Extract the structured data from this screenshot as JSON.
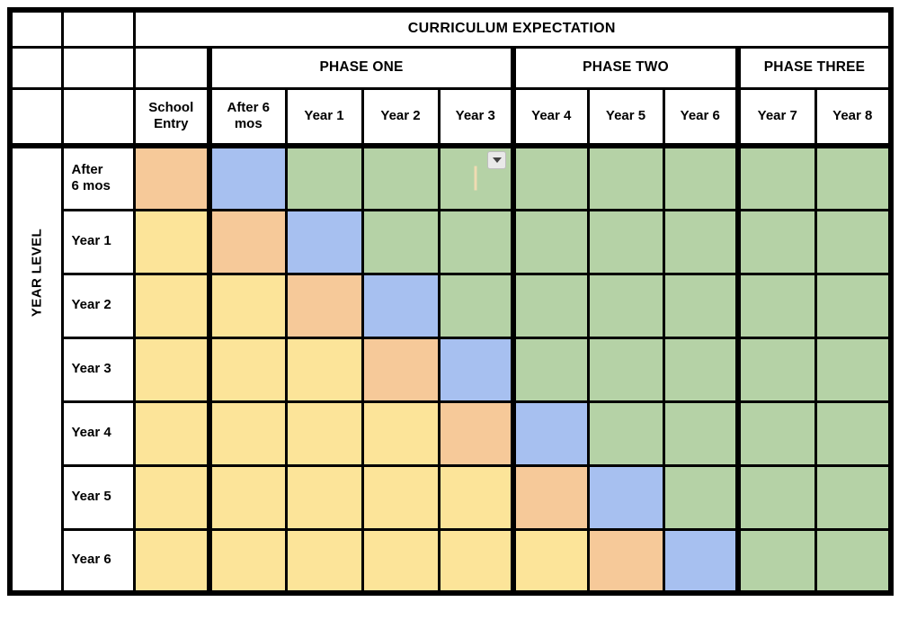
{
  "table": {
    "title": "CURRICULUM EXPECTATION",
    "row_axis_label": "YEAR LEVEL",
    "phases": [
      {
        "label": "PHASE ONE",
        "span": 4
      },
      {
        "label": "PHASE TWO",
        "span": 3
      },
      {
        "label": "PHASE THREE",
        "span": 2
      }
    ],
    "columns": [
      "School\nEntry",
      "After 6\nmos",
      "Year 1",
      "Year 2",
      "Year 3",
      "Year 4",
      "Year 5",
      "Year 6",
      "Year 7",
      "Year 8"
    ],
    "rows": [
      {
        "label": "After\n6 mos",
        "cells": [
          "orange",
          "blue",
          "green",
          "green",
          "green",
          "green",
          "green",
          "green",
          "green",
          "green"
        ]
      },
      {
        "label": "Year 1",
        "cells": [
          "yellow",
          "orange",
          "blue",
          "green",
          "green",
          "green",
          "green",
          "green",
          "green",
          "green"
        ]
      },
      {
        "label": "Year 2",
        "cells": [
          "yellow",
          "yellow",
          "orange",
          "blue",
          "green",
          "green",
          "green",
          "green",
          "green",
          "green"
        ]
      },
      {
        "label": "Year 3",
        "cells": [
          "yellow",
          "yellow",
          "yellow",
          "orange",
          "blue",
          "green",
          "green",
          "green",
          "green",
          "green"
        ]
      },
      {
        "label": "Year 4",
        "cells": [
          "yellow",
          "yellow",
          "yellow",
          "yellow",
          "orange",
          "blue",
          "green",
          "green",
          "green",
          "green"
        ]
      },
      {
        "label": "Year 5",
        "cells": [
          "yellow",
          "yellow",
          "yellow",
          "yellow",
          "yellow",
          "orange",
          "blue",
          "green",
          "green",
          "green"
        ]
      },
      {
        "label": "Year 6",
        "cells": [
          "yellow",
          "yellow",
          "yellow",
          "yellow",
          "yellow",
          "yellow",
          "orange",
          "blue",
          "green",
          "green"
        ]
      }
    ]
  },
  "colors": {
    "yellow": "#FCE499",
    "orange": "#F6C999",
    "blue": "#A7C0F0",
    "green": "#B5D2A6"
  },
  "widgets": {
    "dropdown_chip": {
      "row_index": 0,
      "col_index": 4,
      "icon": "chevron-down-icon"
    },
    "text_cursor": {
      "row_index": 0,
      "col_index": 4
    }
  },
  "phase_separator_col_indices": [
    1,
    5,
    8
  ]
}
